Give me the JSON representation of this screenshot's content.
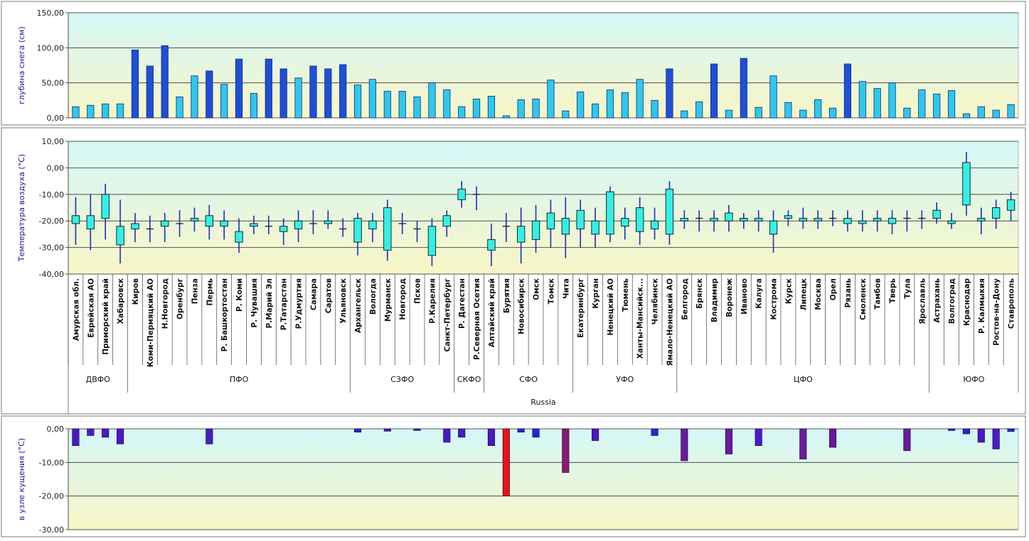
{
  "chart_data": [
    {
      "type": "bar",
      "ylabel": "глубина снега (см)",
      "ylim": [
        0,
        150
      ],
      "yticks": [
        "0,00",
        "50,00",
        "100,00",
        "150,00"
      ],
      "grid": true,
      "colors": {
        "normal": "#2fc8ec",
        "high": "#1f4fd6"
      },
      "values": [
        16,
        18,
        20,
        20,
        97,
        74,
        103,
        30,
        60,
        67,
        48,
        84,
        35,
        84,
        70,
        57,
        74,
        70,
        76,
        47,
        55,
        38,
        38,
        30,
        50,
        40,
        16,
        27,
        31,
        3,
        26,
        27,
        54,
        10,
        37,
        20,
        40,
        36,
        55,
        25,
        70,
        10,
        23,
        77,
        11,
        85,
        15,
        60,
        22,
        11,
        26,
        14,
        77,
        52,
        42,
        50,
        14,
        40,
        34,
        39,
        6,
        16,
        11,
        19
      ]
    },
    {
      "type": "candlestick",
      "ylabel": "Температура воздуха  (°C)",
      "ylim": [
        -40,
        10
      ],
      "yticks": [
        "-40,00",
        "-30,00",
        "-20,00",
        "-10,00",
        "0,00",
        "10,00"
      ],
      "grid": true,
      "colors": {
        "box": "#33f0e6",
        "line": "#1a2fbf"
      },
      "categories": [
        "Амурская обл.",
        "Еврейская АО",
        "Приморский край",
        "Хабаровск",
        "Киров",
        "Коми-Пермяцкий АО",
        "Н.Новгород",
        "Оренбург",
        "Пенза",
        "Пермь",
        "Р. Башкортостан",
        "Р. Коми",
        "Р. Чувашия",
        "Р.Марий Эл",
        "Р.Татарстан",
        "Р.Удмуртия",
        "Самара",
        "Саратов",
        "Ульяновск",
        "Архангельск",
        "Вологда",
        "Мурманск",
        "Новгород",
        "Псков",
        "Р.Карелия",
        "Санкт-Петербург",
        "Р. Дагестан",
        "Р.Северная Осетия",
        "Алтайский край",
        "Бурятия",
        "Новосибирск",
        "Омск",
        "Томск",
        "Чита",
        "Екатеринбург",
        "Курган",
        "Ненецкий АО",
        "Тюмень",
        "Ханты-Мансийск...",
        "Челябинск",
        "Ямало-Ненецкий АО",
        "Белгород",
        "Брянск",
        "Владимир",
        "Воронеж",
        "Иваново",
        "Калуга",
        "Кострома",
        "Курск",
        "Липецк",
        "Москва",
        "Орел",
        "Рязань",
        "Смоленск",
        "Тамбов",
        "Тверь",
        "Тула",
        "Ярославль",
        "Астрахань",
        "Волгоград",
        "Краснодар",
        "Р. Калмыкия",
        "Ростов-на-Дону",
        "Ставрополь"
      ],
      "groups": [
        {
          "label": "ДВФО",
          "count": 4
        },
        {
          "label": "ПФО",
          "count": 15
        },
        {
          "label": "СЗФО",
          "count": 7
        },
        {
          "label": "СКФО",
          "count": 2
        },
        {
          "label": "СФО",
          "count": 6
        },
        {
          "label": "УФО",
          "count": 7
        },
        {
          "label": "ЦФО",
          "count": 17
        },
        {
          "label": "ЮФО",
          "count": 6
        }
      ],
      "xlabel": "Russia",
      "ohlc": [
        [
          -11,
          -29,
          -18,
          -21
        ],
        [
          -10,
          -31,
          -18,
          -23
        ],
        [
          -6,
          -27,
          -10,
          -19
        ],
        [
          -12,
          -36,
          -22,
          -29
        ],
        [
          -17,
          -28,
          -21,
          -23
        ],
        [
          -18,
          -28,
          -23,
          -23
        ],
        [
          -17,
          -28,
          -20,
          -22
        ],
        [
          -16,
          -26,
          -21,
          -21
        ],
        [
          -15,
          -24,
          -19,
          -20
        ],
        [
          -14,
          -27,
          -18,
          -22
        ],
        [
          -16,
          -27,
          -20,
          -22
        ],
        [
          -19,
          -32,
          -24,
          -28
        ],
        [
          -18,
          -25,
          -21,
          -22
        ],
        [
          -18,
          -25,
          -22,
          -22
        ],
        [
          -19,
          -29,
          -22,
          -24
        ],
        [
          -16,
          -28,
          -20,
          -23
        ],
        [
          -16,
          -25,
          -21,
          -21
        ],
        [
          -16,
          -23,
          -20,
          -21
        ],
        [
          -19,
          -26,
          -23,
          -23
        ],
        [
          -17,
          -33,
          -19,
          -28
        ],
        [
          -17,
          -28,
          -20,
          -23
        ],
        [
          -12,
          -35,
          -15,
          -31
        ],
        [
          -17,
          -25,
          -21,
          -21
        ],
        [
          -20,
          -28,
          -23,
          -23
        ],
        [
          -19,
          -37,
          -22,
          -33
        ],
        [
          -16,
          -26,
          -18,
          -22
        ],
        [
          -5,
          -15,
          -8,
          -12
        ],
        [
          -7,
          -16,
          -10,
          -10
        ],
        [
          -21,
          -37,
          -27,
          -31
        ],
        [
          -17,
          -28,
          -22,
          -22
        ],
        [
          -15,
          -36,
          -22,
          -28
        ],
        [
          -14,
          -32,
          -20,
          -27
        ],
        [
          -12,
          -30,
          -17,
          -23
        ],
        [
          -11,
          -34,
          -19,
          -25
        ],
        [
          -12,
          -30,
          -16,
          -23
        ],
        [
          -15,
          -30,
          -20,
          -25
        ],
        [
          -7,
          -28,
          -9,
          -25
        ],
        [
          -15,
          -27,
          -19,
          -22
        ],
        [
          -11,
          -29,
          -15,
          -24
        ],
        [
          -15,
          -27,
          -20,
          -23
        ],
        [
          -5,
          -29,
          -8,
          -25
        ],
        [
          -16,
          -23,
          -19,
          -20
        ],
        [
          -16,
          -24,
          -19,
          -19
        ],
        [
          -16,
          -24,
          -19,
          -20
        ],
        [
          -14,
          -24,
          -17,
          -20
        ],
        [
          -17,
          -23,
          -19,
          -20
        ],
        [
          -16,
          -24,
          -19,
          -20
        ],
        [
          -16,
          -32,
          -20,
          -25
        ],
        [
          -16,
          -22,
          -18,
          -19
        ],
        [
          -15,
          -23,
          -19,
          -20
        ],
        [
          -16,
          -23,
          -19,
          -20
        ],
        [
          -16,
          -22,
          -19,
          -19
        ],
        [
          -16,
          -24,
          -19,
          -21
        ],
        [
          -16,
          -24,
          -20,
          -21
        ],
        [
          -16,
          -24,
          -19,
          -20
        ],
        [
          -16,
          -25,
          -19,
          -21
        ],
        [
          -16,
          -24,
          -19,
          -19
        ],
        [
          -16,
          -23,
          -19,
          -19
        ],
        [
          -13,
          -21,
          -16,
          -19
        ],
        [
          -17,
          -23,
          -20,
          -21
        ],
        [
          6,
          -18,
          2,
          -14
        ],
        [
          -15,
          -25,
          -19,
          -20
        ],
        [
          -12,
          -23,
          -15,
          -19
        ],
        [
          -9,
          -20,
          -12,
          -16
        ]
      ]
    },
    {
      "type": "bar",
      "ylabel": "в узле кущения (°C)",
      "ylim": [
        -30,
        0
      ],
      "yticks": [
        "-30,00",
        "-20,00",
        "-10,00",
        "0,00"
      ],
      "grid": true,
      "colors": {
        "blue": "#1b2ad8",
        "violet": "#4a1ac4",
        "purple": "#6a1a9c",
        "maroon": "#8c1a6e",
        "red": "#ee1111"
      },
      "values": [
        -5,
        -2,
        -2.5,
        -4.5,
        null,
        null,
        null,
        null,
        null,
        -4.5,
        null,
        null,
        null,
        null,
        null,
        null,
        null,
        null,
        null,
        -1,
        null,
        -0.7,
        null,
        -0.5,
        null,
        -4,
        -2.5,
        null,
        -5,
        -20,
        -1,
        -2.5,
        null,
        -13,
        null,
        -3.5,
        null,
        null,
        null,
        -2,
        null,
        -9.5,
        null,
        null,
        -7.5,
        null,
        -5,
        null,
        null,
        -9,
        null,
        -5.5,
        null,
        null,
        null,
        null,
        -6.5,
        null,
        null,
        -0.5,
        -1.5,
        -4,
        -6,
        -0.8
      ],
      "bar_color_keys": [
        "violet",
        "violet",
        "violet",
        "violet",
        null,
        null,
        null,
        null,
        null,
        "violet",
        null,
        null,
        null,
        null,
        null,
        null,
        null,
        null,
        null,
        "blue",
        null,
        "violet",
        null,
        "violet",
        null,
        "violet",
        "violet",
        null,
        "violet",
        "red",
        "blue",
        "blue",
        null,
        "maroon",
        null,
        "violet",
        null,
        null,
        null,
        "blue",
        null,
        "purple",
        null,
        null,
        "purple",
        null,
        "violet",
        null,
        null,
        "purple",
        null,
        "purple",
        null,
        null,
        null,
        null,
        "purple",
        null,
        null,
        "blue",
        "blue",
        "violet",
        "violet",
        "blue"
      ]
    }
  ]
}
